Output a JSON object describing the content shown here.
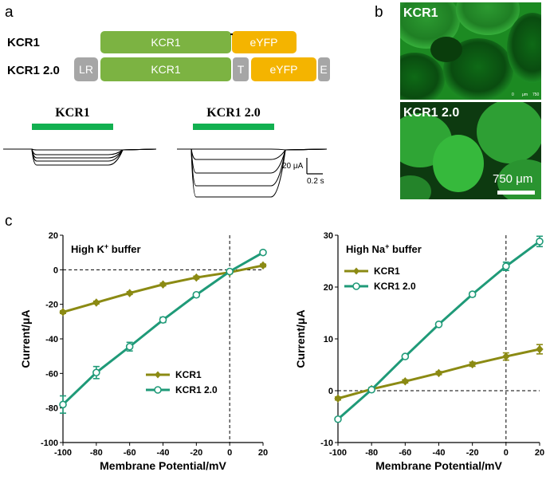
{
  "panels": {
    "a": "a",
    "b": "b",
    "c": "c"
  },
  "constructs": {
    "kcr1": {
      "label": "KCR1",
      "segments": [
        "KCR1",
        "eYFP"
      ]
    },
    "kcr1_2": {
      "label": "KCR1 2.0",
      "segments": [
        "LR",
        "KCR1",
        "T",
        "eYFP",
        "E"
      ]
    }
  },
  "colors": {
    "opsin_green": "#7cb342",
    "eyfp_yellow": "#f4b400",
    "tag_gray": "#a6a6a6",
    "light_bar": "#12b050",
    "kcr1_series": "#8b8a13",
    "kcr1_2_series": "#1f9a78"
  },
  "traces": {
    "kcr1_title": "KCR1",
    "kcr1_2_title": "KCR1 2.0",
    "scale_current": "20 μA",
    "scale_time": "0.2 s"
  },
  "micrographs": {
    "top_label": "KCR1",
    "bottom_label": "KCR1 2.0",
    "scale_text": "750 μm",
    "tiny_scale": [
      "0",
      "μm",
      "750"
    ]
  },
  "chart_data": [
    {
      "type": "line",
      "buffer_label": "High K",
      "buffer_sup": "+",
      "buffer_rest": " buffer",
      "xlabel": "Membrane Potential/mV",
      "ylabel": "Current/μA",
      "xlim": [
        -100,
        20
      ],
      "ylim": [
        -100,
        20
      ],
      "xticks": [
        -100,
        -80,
        -60,
        -40,
        -20,
        0,
        20
      ],
      "yticks": [
        -100,
        -80,
        -60,
        -40,
        -20,
        0,
        20
      ],
      "legend_position": "bottom-right",
      "reference_lines": {
        "x": 0,
        "y": 0
      },
      "x": [
        -100,
        -80,
        -60,
        -40,
        -20,
        0,
        20
      ],
      "series": [
        {
          "name": "KCR1",
          "marker": "diamond",
          "values": [
            -24.5,
            -19,
            -13.5,
            -8.5,
            -4.5,
            -1.5,
            2.5
          ],
          "errors": [
            0.8,
            0.8,
            0.8,
            0.8,
            0.8,
            0.8,
            0.8
          ]
        },
        {
          "name": "KCR1 2.0",
          "marker": "circle",
          "values": [
            -78,
            -59.5,
            -44.5,
            -29,
            -14.5,
            -1,
            10
          ],
          "errors": [
            5,
            3.5,
            2.5,
            1.5,
            1,
            0.8,
            0.8
          ]
        }
      ]
    },
    {
      "type": "line",
      "buffer_label": "High Na",
      "buffer_sup": "+",
      "buffer_rest": " buffer",
      "xlabel": "Membrane Potential/mV",
      "ylabel": "Current/μA",
      "xlim": [
        -100,
        20
      ],
      "ylim": [
        -10,
        30
      ],
      "xticks": [
        -100,
        -80,
        -60,
        -40,
        -20,
        0,
        20
      ],
      "yticks": [
        -10,
        0,
        10,
        20,
        30
      ],
      "legend_position": "top-left",
      "reference_lines": {
        "x": 0,
        "y": 0
      },
      "x": [
        -100,
        -80,
        -60,
        -40,
        -20,
        0,
        20
      ],
      "series": [
        {
          "name": "KCR1",
          "marker": "diamond",
          "values": [
            -1.5,
            0.3,
            1.8,
            3.4,
            5.1,
            6.6,
            8.0
          ],
          "errors": [
            0.3,
            0.3,
            0.3,
            0.3,
            0.4,
            0.7,
            0.9
          ]
        },
        {
          "name": "KCR1 2.0",
          "marker": "circle",
          "values": [
            -5.5,
            0.2,
            6.6,
            12.8,
            18.6,
            24.0,
            28.8
          ],
          "errors": [
            0.3,
            0.3,
            0.3,
            0.3,
            0.4,
            0.8,
            1.0
          ]
        }
      ]
    }
  ]
}
